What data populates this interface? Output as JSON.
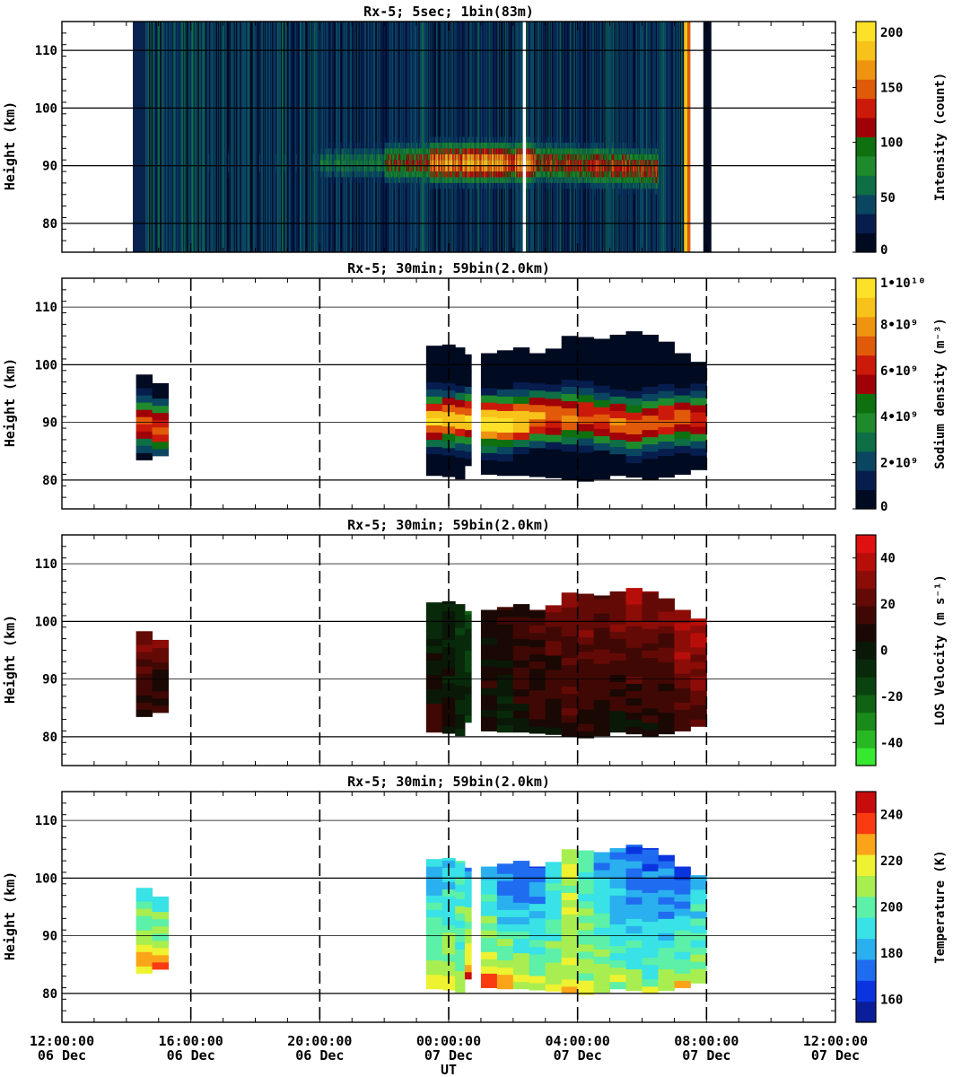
{
  "figure": {
    "xlabel": "UT",
    "time_ticks": [
      {
        "time": "12:00:00",
        "date": "06 Dec"
      },
      {
        "time": "16:00:00",
        "date": "06 Dec"
      },
      {
        "time": "20:00:00",
        "date": "06 Dec"
      },
      {
        "time": "00:00:00",
        "date": "07 Dec"
      },
      {
        "time": "04:00:00",
        "date": "07 Dec"
      },
      {
        "time": "08:00:00",
        "date": "07 Dec"
      },
      {
        "time": "12:00:00",
        "date": "07 Dec"
      }
    ]
  },
  "chart_data": [
    {
      "type": "heatmap",
      "title": "Rx-5;  5sec; 1bin(83m)",
      "ylabel": "Height (km)",
      "ylim": [
        75,
        115
      ],
      "y_ticks": [
        80,
        90,
        100,
        110
      ],
      "x_range_hours_ut": [
        12,
        36
      ],
      "colorbar": {
        "label": "Intensity (count)",
        "range": [
          0,
          210
        ],
        "tick_values": [
          0,
          50,
          100,
          150,
          200
        ],
        "tick_labels": [
          "0",
          "50",
          "100",
          "150",
          "200"
        ],
        "colors": [
          "#000a20",
          "#061d4e",
          "#0b4660",
          "#0e6e45",
          "#1f8a2c",
          "#0f7010",
          "#a00008",
          "#cc1a0a",
          "#e05a0a",
          "#ef9410",
          "#f7c21a",
          "#fde028"
        ]
      },
      "vertical_lines_hours": [],
      "profile_columns": [
        {
          "start": 14.2,
          "end": 14.6,
          "bottom": 75,
          "top": 115,
          "layer_intensity": 75
        },
        {
          "start": 16.5,
          "end": 20.0,
          "bottom": 75,
          "top": 115,
          "layer_intensity": 40
        },
        {
          "start": 20.0,
          "end": 22.0,
          "bottom": 75,
          "top": 115,
          "layer_intensity": 70
        },
        {
          "start": 22.0,
          "end": 23.4,
          "bottom": 75,
          "top": 115,
          "layer_intensity": 120
        },
        {
          "start": 23.4,
          "end": 26.6,
          "bottom": 75,
          "top": 115,
          "layer_intensity": 175
        },
        {
          "start": 26.6,
          "end": 30.5,
          "bottom": 75,
          "top": 115,
          "layer_intensity": 130
        }
      ],
      "data_gaps_hours": [
        [
          26.3,
          26.4
        ],
        [
          31.5,
          31.7
        ],
        [
          32.0,
          36.0
        ]
      ],
      "saturated_band_hours": [
        31.3,
        31.5
      ]
    },
    {
      "type": "heatmap",
      "title": "Rx-5; 30min; 59bin(2.0km)",
      "ylabel": "Height (km)",
      "ylim": [
        75,
        115
      ],
      "y_ticks": [
        80,
        90,
        100,
        110
      ],
      "x_range_hours_ut": [
        12,
        36
      ],
      "colorbar": {
        "label": "Sodium density (m⁻³)",
        "range": [
          0,
          10000000000.0
        ],
        "tick_values": [
          0,
          2000000000.0,
          4000000000.0,
          6000000000.0,
          8000000000.0,
          10000000000.0
        ],
        "tick_labels": [
          "0",
          "2•10⁹",
          "4•10⁹",
          "6•10⁹",
          "8•10⁹",
          "1•10¹⁰"
        ],
        "colors": [
          "#000a20",
          "#061d4e",
          "#0b4660",
          "#0e6e45",
          "#1f8a2c",
          "#0f7010",
          "#a00008",
          "#cc1a0a",
          "#e05a0a",
          "#ef9410",
          "#f7c21a",
          "#fde028"
        ]
      },
      "vertical_lines_hours": [
        16,
        20,
        24,
        28,
        32
      ],
      "profile_columns": [
        {
          "start": 14.3,
          "end": 14.8,
          "bottom": 83.5,
          "top": 98.3,
          "peak": 90.0,
          "peak_value": 6500000000.0
        },
        {
          "start": 14.8,
          "end": 15.3,
          "bottom": 84.2,
          "top": 96.8,
          "peak": 89.0,
          "peak_value": 7200000000.0
        },
        {
          "start": 23.3,
          "end": 23.8,
          "bottom": 80.8,
          "top": 103.3,
          "peak": 90.5,
          "peak_value": 9000000000.0
        },
        {
          "start": 23.8,
          "end": 24.2,
          "bottom": 80.6,
          "top": 103.5,
          "peak": 90.5,
          "peak_value": 9200000000.0
        },
        {
          "start": 24.2,
          "end": 24.5,
          "bottom": 80.2,
          "top": 103.0,
          "peak": 90.5,
          "peak_value": 8300000000.0
        },
        {
          "start": 24.5,
          "end": 24.7,
          "bottom": 82.5,
          "top": 101.8,
          "peak": 90.5,
          "peak_value": 8800000000.0
        },
        {
          "start": 25.0,
          "end": 25.5,
          "bottom": 81.0,
          "top": 102.0,
          "peak": 90.0,
          "peak_value": 9600000000.0
        },
        {
          "start": 25.5,
          "end": 26.0,
          "bottom": 80.8,
          "top": 102.5,
          "peak": 90.0,
          "peak_value": 9800000000.0
        },
        {
          "start": 26.0,
          "end": 26.5,
          "bottom": 80.8,
          "top": 103.0,
          "peak": 90.5,
          "peak_value": 9000000000.0
        },
        {
          "start": 26.5,
          "end": 27.0,
          "bottom": 80.6,
          "top": 102.0,
          "peak": 91.0,
          "peak_value": 8000000000.0
        },
        {
          "start": 27.0,
          "end": 27.5,
          "bottom": 80.4,
          "top": 102.8,
          "peak": 91.0,
          "peak_value": 7500000000.0
        },
        {
          "start": 27.5,
          "end": 28.0,
          "bottom": 80.0,
          "top": 105.0,
          "peak": 91.0,
          "peak_value": 7800000000.0
        },
        {
          "start": 28.0,
          "end": 28.5,
          "bottom": 79.8,
          "top": 104.8,
          "peak": 91.0,
          "peak_value": 7300000000.0
        },
        {
          "start": 28.5,
          "end": 29.0,
          "bottom": 80.2,
          "top": 104.5,
          "peak": 90.5,
          "peak_value": 7000000000.0
        },
        {
          "start": 29.0,
          "end": 29.5,
          "bottom": 80.8,
          "top": 105.2,
          "peak": 90.0,
          "peak_value": 7300000000.0
        },
        {
          "start": 29.5,
          "end": 30.0,
          "bottom": 80.5,
          "top": 105.8,
          "peak": 89.5,
          "peak_value": 7500000000.0
        },
        {
          "start": 30.0,
          "end": 30.5,
          "bottom": 80.0,
          "top": 105.2,
          "peak": 90.0,
          "peak_value": 6800000000.0
        },
        {
          "start": 30.5,
          "end": 31.0,
          "bottom": 80.5,
          "top": 104.0,
          "peak": 90.5,
          "peak_value": 7200000000.0
        },
        {
          "start": 31.0,
          "end": 31.5,
          "bottom": 81.0,
          "top": 102.0,
          "peak": 90.5,
          "peak_value": 7000000000.0
        },
        {
          "start": 31.5,
          "end": 32.0,
          "bottom": 81.8,
          "top": 100.5,
          "peak": 90.5,
          "peak_value": 6800000000.0
        }
      ]
    },
    {
      "type": "heatmap",
      "title": "Rx-5; 30min; 59bin(2.0km)",
      "ylabel": "Height (km)",
      "ylim": [
        75,
        115
      ],
      "y_ticks": [
        80,
        90,
        100,
        110
      ],
      "x_range_hours_ut": [
        12,
        36
      ],
      "colorbar": {
        "label": "LOS Velocity (m s⁻¹)",
        "range": [
          -50,
          50
        ],
        "tick_values": [
          -40,
          -20,
          0,
          20,
          40
        ],
        "tick_labels": [
          "-40",
          "-20",
          "0",
          "20",
          "40"
        ],
        "colors": [
          "#36e830",
          "#28b824",
          "#1a8a1a",
          "#116212",
          "#0a4210",
          "#082a0a",
          "#0a1808",
          "#1a0804",
          "#400804",
          "#640a06",
          "#8c0c08",
          "#b80e0a",
          "#e01010"
        ]
      },
      "vertical_lines_hours": [
        16,
        20,
        24,
        28,
        32
      ],
      "profile_columns": [
        {
          "start": 14.3,
          "end": 14.8,
          "bottom": 83.5,
          "top": 98.3,
          "upper_value": 28,
          "lower_value": 12
        },
        {
          "start": 14.8,
          "end": 15.3,
          "bottom": 84.2,
          "top": 96.8,
          "upper_value": 24,
          "lower_value": 8
        },
        {
          "start": 23.3,
          "end": 23.8,
          "bottom": 80.8,
          "top": 103.3,
          "upper_value": -8,
          "lower_value": 14
        },
        {
          "start": 23.8,
          "end": 24.2,
          "bottom": 80.6,
          "top": 103.5,
          "upper_value": -6,
          "lower_value": 6
        },
        {
          "start": 24.2,
          "end": 24.5,
          "bottom": 80.2,
          "top": 103.0,
          "upper_value": -10,
          "lower_value": -4
        },
        {
          "start": 24.5,
          "end": 24.7,
          "bottom": 82.5,
          "top": 101.8,
          "upper_value": -14,
          "lower_value": -6
        },
        {
          "start": 25.0,
          "end": 25.5,
          "bottom": 81.0,
          "top": 102.0,
          "upper_value": 6,
          "lower_value": 10
        },
        {
          "start": 25.5,
          "end": 26.0,
          "bottom": 80.8,
          "top": 102.5,
          "upper_value": 10,
          "lower_value": -6
        },
        {
          "start": 26.0,
          "end": 26.5,
          "bottom": 80.8,
          "top": 103.0,
          "upper_value": 12,
          "lower_value": 8
        },
        {
          "start": 26.5,
          "end": 27.0,
          "bottom": 80.6,
          "top": 102.0,
          "upper_value": 14,
          "lower_value": 10
        },
        {
          "start": 27.0,
          "end": 27.5,
          "bottom": 80.4,
          "top": 102.8,
          "upper_value": 22,
          "lower_value": 6
        },
        {
          "start": 27.5,
          "end": 28.0,
          "bottom": 80.0,
          "top": 105.0,
          "upper_value": 32,
          "lower_value": 10
        },
        {
          "start": 28.0,
          "end": 28.5,
          "bottom": 79.8,
          "top": 104.8,
          "upper_value": 28,
          "lower_value": 8
        },
        {
          "start": 28.5,
          "end": 29.0,
          "bottom": 80.2,
          "top": 104.5,
          "upper_value": 24,
          "lower_value": 8
        },
        {
          "start": 29.0,
          "end": 29.5,
          "bottom": 80.8,
          "top": 105.2,
          "upper_value": 30,
          "lower_value": 6
        },
        {
          "start": 29.5,
          "end": 30.0,
          "bottom": 80.5,
          "top": 105.8,
          "upper_value": 34,
          "lower_value": 4
        },
        {
          "start": 30.0,
          "end": 30.5,
          "bottom": 80.0,
          "top": 105.2,
          "upper_value": 30,
          "lower_value": 6
        },
        {
          "start": 30.5,
          "end": 31.0,
          "bottom": 80.5,
          "top": 104.0,
          "upper_value": 28,
          "lower_value": 8
        },
        {
          "start": 31.0,
          "end": 31.5,
          "bottom": 81.0,
          "top": 102.0,
          "upper_value": 40,
          "lower_value": 10
        },
        {
          "start": 31.5,
          "end": 32.0,
          "bottom": 81.8,
          "top": 100.5,
          "upper_value": 42,
          "lower_value": 14
        }
      ]
    },
    {
      "type": "heatmap",
      "title": "Rx-5; 30min; 59bin(2.0km)",
      "ylabel": "Height (km)",
      "ylim": [
        75,
        115
      ],
      "y_ticks": [
        80,
        90,
        100,
        110
      ],
      "x_range_hours_ut": [
        12,
        36
      ],
      "colorbar": {
        "label": "Temperature (K)",
        "range": [
          150,
          250
        ],
        "tick_values": [
          160,
          180,
          200,
          220,
          240
        ],
        "tick_labels": [
          "160",
          "180",
          "200",
          "220",
          "240"
        ],
        "colors": [
          "#0a1e9a",
          "#0a34e0",
          "#1f6cf0",
          "#2ab0ee",
          "#38e2e6",
          "#5cf0a8",
          "#a8ee50",
          "#eef230",
          "#fba41a",
          "#fa3a10",
          "#c80c0c"
        ]
      },
      "vertical_lines_hours": [
        16,
        20,
        24,
        28,
        32
      ],
      "profile_columns": [
        {
          "start": 14.3,
          "end": 14.8,
          "bottom": 83.5,
          "top": 98.3,
          "upper_value": 190,
          "lower_value": 224
        },
        {
          "start": 14.8,
          "end": 15.3,
          "bottom": 84.2,
          "top": 96.8,
          "upper_value": 188,
          "lower_value": 226
        },
        {
          "start": 23.3,
          "end": 23.8,
          "bottom": 80.8,
          "top": 103.3,
          "upper_value": 180,
          "lower_value": 210
        },
        {
          "start": 23.8,
          "end": 24.2,
          "bottom": 80.6,
          "top": 103.5,
          "upper_value": 184,
          "lower_value": 208
        },
        {
          "start": 24.2,
          "end": 24.5,
          "bottom": 80.2,
          "top": 103.0,
          "upper_value": 192,
          "lower_value": 206
        },
        {
          "start": 24.5,
          "end": 24.7,
          "bottom": 82.5,
          "top": 101.8,
          "upper_value": 182,
          "lower_value": 224
        },
        {
          "start": 25.0,
          "end": 25.5,
          "bottom": 81.0,
          "top": 102.0,
          "upper_value": 178,
          "lower_value": 226
        },
        {
          "start": 25.5,
          "end": 26.0,
          "bottom": 80.8,
          "top": 102.5,
          "upper_value": 168,
          "lower_value": 218
        },
        {
          "start": 26.0,
          "end": 26.5,
          "bottom": 80.8,
          "top": 103.0,
          "upper_value": 166,
          "lower_value": 214
        },
        {
          "start": 26.5,
          "end": 27.0,
          "bottom": 80.6,
          "top": 102.0,
          "upper_value": 170,
          "lower_value": 212
        },
        {
          "start": 27.0,
          "end": 27.5,
          "bottom": 80.4,
          "top": 102.8,
          "upper_value": 186,
          "lower_value": 210
        },
        {
          "start": 27.5,
          "end": 28.0,
          "bottom": 80.0,
          "top": 105.0,
          "upper_value": 210,
          "lower_value": 214
        },
        {
          "start": 28.0,
          "end": 28.5,
          "bottom": 79.8,
          "top": 104.8,
          "upper_value": 196,
          "lower_value": 208
        },
        {
          "start": 28.5,
          "end": 29.0,
          "bottom": 80.2,
          "top": 104.5,
          "upper_value": 182,
          "lower_value": 206
        },
        {
          "start": 29.0,
          "end": 29.5,
          "bottom": 80.8,
          "top": 105.2,
          "upper_value": 176,
          "lower_value": 204
        },
        {
          "start": 29.5,
          "end": 30.0,
          "bottom": 80.5,
          "top": 105.8,
          "upper_value": 166,
          "lower_value": 206
        },
        {
          "start": 30.0,
          "end": 30.5,
          "bottom": 80.0,
          "top": 105.2,
          "upper_value": 168,
          "lower_value": 202
        },
        {
          "start": 30.5,
          "end": 31.0,
          "bottom": 80.5,
          "top": 104.0,
          "upper_value": 166,
          "lower_value": 206
        },
        {
          "start": 31.0,
          "end": 31.5,
          "bottom": 81.0,
          "top": 102.0,
          "upper_value": 170,
          "lower_value": 208
        },
        {
          "start": 31.5,
          "end": 32.0,
          "bottom": 81.8,
          "top": 100.5,
          "upper_value": 178,
          "lower_value": 212
        }
      ]
    }
  ]
}
